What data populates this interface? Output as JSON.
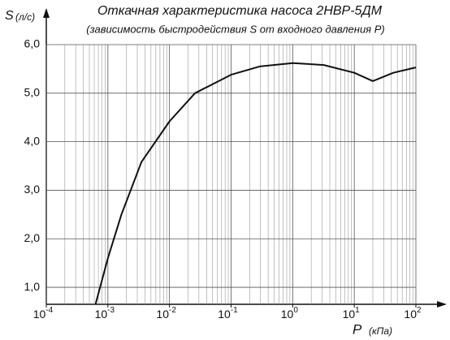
{
  "chart_data": {
    "type": "line",
    "title": "Откачная характеристика насоса 2НВР-5ДМ",
    "subtitle": "(зависимость быстродействия S от входного давления P)",
    "y_label": "S",
    "y_unit": "(л/с)",
    "x_label": "P",
    "x_unit": "(кПа)",
    "x_log": true,
    "grid": true,
    "minor_grid": true,
    "xlim": [
      0.0001,
      100
    ],
    "xticks": [
      {
        "value": 0.0001,
        "label": "10",
        "exp": "-4"
      },
      {
        "value": 0.001,
        "label": "10",
        "exp": "-3"
      },
      {
        "value": 0.01,
        "label": "10",
        "exp": "-2"
      },
      {
        "value": 0.1,
        "label": "10",
        "exp": "-1"
      },
      {
        "value": 1,
        "label": "10",
        "exp": "0"
      },
      {
        "value": 10,
        "label": "10",
        "exp": "1"
      },
      {
        "value": 100,
        "label": "10",
        "exp": "2"
      }
    ],
    "ylim": [
      0.65,
      6.0
    ],
    "yticks": [
      {
        "value": 1.0,
        "label": "1,0"
      },
      {
        "value": 2.0,
        "label": "2,0"
      },
      {
        "value": 3.0,
        "label": "3,0"
      },
      {
        "value": 4.0,
        "label": "4,0"
      },
      {
        "value": 5.0,
        "label": "5,0"
      },
      {
        "value": 6.0,
        "label": "6,0"
      }
    ],
    "series": [
      {
        "color": "#111111",
        "x": [
          0.00063,
          0.001,
          0.00166,
          0.0035,
          0.01,
          0.026,
          0.1,
          0.29,
          1,
          3.2,
          10,
          20,
          43,
          100
        ],
        "values": [
          0.65,
          1.6,
          2.5,
          3.58,
          4.42,
          5.0,
          5.38,
          5.55,
          5.62,
          5.58,
          5.42,
          5.25,
          5.42,
          5.53
        ]
      }
    ]
  }
}
